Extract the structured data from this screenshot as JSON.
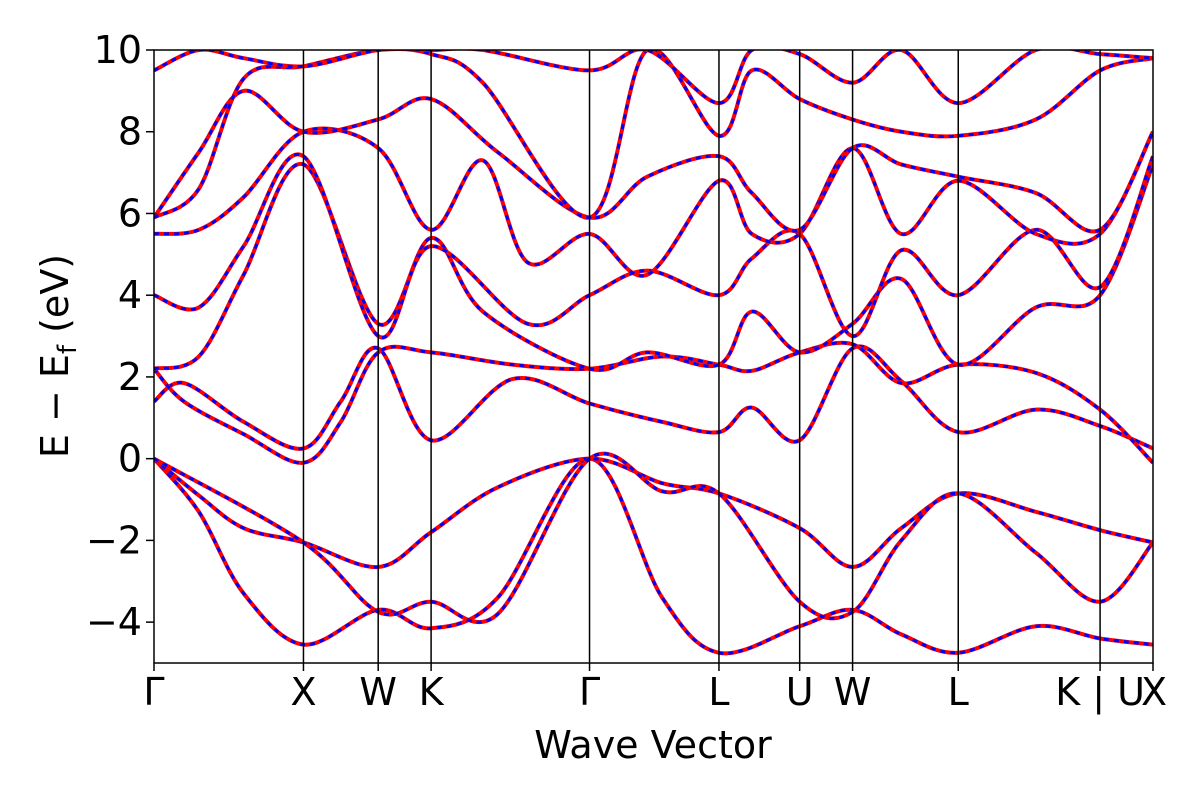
{
  "chart_data": {
    "type": "line",
    "title": "",
    "xlabel": "Wave Vector",
    "ylabel": "E − E",
    "ylabel_subscript": "f",
    "ylabel_unit": " (eV)",
    "ylim": [
      -5,
      10
    ],
    "yticks": [
      -4,
      -2,
      0,
      2,
      4,
      6,
      8,
      10
    ],
    "ytick_labels": [
      "−4",
      "−2",
      "0",
      "2",
      "4",
      "6",
      "8",
      "10"
    ],
    "kpath": [
      {
        "label": "Γ",
        "pos": 0.0
      },
      {
        "label": "X",
        "pos": 1.0
      },
      {
        "label": "W",
        "pos": 1.5
      },
      {
        "label": "K",
        "pos": 1.854
      },
      {
        "label": "Γ",
        "pos": 2.914
      },
      {
        "label": "L",
        "pos": 3.78
      },
      {
        "label": "U",
        "pos": 4.32
      },
      {
        "label": "W",
        "pos": 4.674
      },
      {
        "label": "L",
        "pos": 5.381
      },
      {
        "label": "K | U",
        "pos": 6.33
      },
      {
        "label": "X",
        "pos": 6.684
      }
    ],
    "xlim": [
      0,
      6.684
    ],
    "grid": false,
    "legend": "none",
    "colors": {
      "series_a": "#ff0000",
      "series_b": "#0000ff"
    },
    "bands": [
      {
        "x": [
          0,
          0.3,
          0.6,
          1.0,
          1.5,
          1.854,
          2.3,
          2.914,
          3.4,
          3.78,
          4.32,
          4.674,
          5.0,
          5.381,
          5.9,
          6.33,
          6.684
        ],
        "y": [
          0,
          -1.3,
          -3.3,
          -4.55,
          -3.7,
          -4.15,
          -3.4,
          0,
          -3.4,
          -4.75,
          -4.1,
          -3.7,
          -4.3,
          -4.75,
          -4.1,
          -4.4,
          -4.55
        ]
      },
      {
        "x": [
          0,
          0.3,
          0.6,
          1.0,
          1.5,
          1.854,
          2.3,
          2.914,
          3.4,
          3.78,
          4.32,
          4.674,
          5.0,
          5.381,
          5.9,
          6.33,
          6.684
        ],
        "y": [
          0,
          -0.9,
          -1.7,
          -2.05,
          -2.65,
          -1.8,
          -0.7,
          0,
          -0.6,
          -0.85,
          -1.7,
          -2.65,
          -1.7,
          -0.85,
          -1.3,
          -1.75,
          -2.05
        ]
      },
      {
        "x": [
          0,
          1.0,
          1.5,
          1.854,
          2.3,
          2.914,
          3.4,
          3.78,
          4.32,
          4.674,
          5.0,
          5.381,
          5.9,
          6.33,
          6.684
        ],
        "y": [
          0,
          -2.05,
          -3.75,
          -3.5,
          -3.8,
          0,
          -0.8,
          -0.85,
          -3.5,
          -3.75,
          -2.0,
          -0.85,
          -2.3,
          -3.5,
          -2.05
        ]
      },
      {
        "x": [
          0,
          0.2,
          0.6,
          1.0,
          1.25,
          1.5,
          1.854,
          2.4,
          2.914,
          3.4,
          3.78,
          4.0,
          4.32,
          4.674,
          5.0,
          5.381,
          5.9,
          6.33,
          6.684
        ],
        "y": [
          1.4,
          1.85,
          0.9,
          0.25,
          1.4,
          2.7,
          0.45,
          1.95,
          1.35,
          0.9,
          0.65,
          1.25,
          0.45,
          2.7,
          1.9,
          0.65,
          1.2,
          0.8,
          0.25
        ]
      },
      {
        "x": [
          0,
          0.2,
          0.6,
          1.0,
          1.25,
          1.5,
          1.854,
          2.4,
          2.914,
          3.4,
          3.78,
          4.0,
          4.32,
          4.674,
          5.0,
          5.381,
          5.9,
          6.33,
          6.684
        ],
        "y": [
          2.2,
          1.4,
          0.6,
          -0.1,
          0.9,
          2.6,
          2.6,
          2.3,
          2.2,
          2.5,
          2.3,
          2.15,
          2.6,
          2.8,
          1.85,
          2.3,
          2.1,
          1.2,
          -0.1
        ]
      },
      {
        "x": [
          0,
          0.3,
          0.6,
          1.0,
          1.5,
          1.854,
          2.2,
          2.914,
          3.3,
          3.78,
          4.0,
          4.32,
          4.674,
          5.0,
          5.381,
          5.9,
          6.33,
          6.684
        ],
        "y": [
          2.2,
          2.5,
          4.5,
          7.2,
          3.3,
          5.4,
          3.6,
          2.2,
          2.6,
          2.3,
          3.6,
          2.6,
          3.3,
          4.4,
          2.3,
          3.7,
          4.0,
          7.2
        ]
      },
      {
        "x": [
          0,
          0.3,
          0.6,
          1.0,
          1.5,
          1.854,
          2.5,
          2.914,
          3.3,
          3.78,
          4.0,
          4.32,
          4.674,
          5.0,
          5.381,
          5.9,
          6.33,
          6.684
        ],
        "y": [
          4.0,
          3.7,
          5.2,
          7.4,
          3.0,
          5.2,
          3.3,
          4.0,
          4.6,
          4.0,
          4.9,
          5.5,
          3.0,
          5.1,
          4.0,
          5.6,
          4.2,
          7.4
        ]
      },
      {
        "x": [
          0,
          0.3,
          0.6,
          1.0,
          1.5,
          1.854,
          2.2,
          2.5,
          2.914,
          3.3,
          3.78,
          4.0,
          4.32,
          4.674,
          5.0,
          5.381,
          5.9,
          6.33,
          6.684
        ],
        "y": [
          5.5,
          5.6,
          6.4,
          8.0,
          7.6,
          5.6,
          7.3,
          4.8,
          5.5,
          4.5,
          6.8,
          5.5,
          5.5,
          7.6,
          5.5,
          6.8,
          5.5,
          5.5,
          8.0
        ]
      },
      {
        "x": [
          0,
          0.3,
          0.6,
          1.0,
          1.5,
          1.854,
          2.3,
          2.914,
          3.3,
          3.78,
          4.0,
          4.32,
          4.674,
          5.0,
          5.381,
          5.9,
          6.33,
          6.684
        ],
        "y": [
          5.9,
          7.5,
          9.0,
          8.0,
          8.3,
          8.8,
          7.5,
          5.9,
          6.9,
          7.4,
          6.5,
          5.6,
          7.6,
          7.2,
          6.9,
          6.5,
          5.6,
          8.0
        ]
      },
      {
        "x": [
          0,
          0.3,
          0.6,
          1.0,
          1.5,
          1.854,
          2.2,
          2.914,
          3.3,
          3.78,
          4.0,
          4.32,
          4.674,
          5.0,
          5.381,
          5.9,
          6.33,
          6.684
        ],
        "y": [
          5.9,
          6.6,
          9.3,
          9.6,
          10.0,
          9.9,
          9.2,
          5.9,
          10.0,
          7.9,
          9.5,
          8.8,
          8.3,
          8.0,
          7.9,
          8.3,
          9.5,
          9.8
        ]
      },
      {
        "x": [
          0,
          0.3,
          0.6,
          1.0,
          1.5,
          1.854,
          2.2,
          2.914,
          3.3,
          3.78,
          4.0,
          4.32,
          4.674,
          5.0,
          5.381,
          5.9,
          6.33,
          6.684
        ],
        "y": [
          9.5,
          10.0,
          9.8,
          9.6,
          10.0,
          10.0,
          10.0,
          9.5,
          10.0,
          8.7,
          10.0,
          9.9,
          9.2,
          10.0,
          8.7,
          10.0,
          9.9,
          9.8
        ]
      }
    ]
  }
}
